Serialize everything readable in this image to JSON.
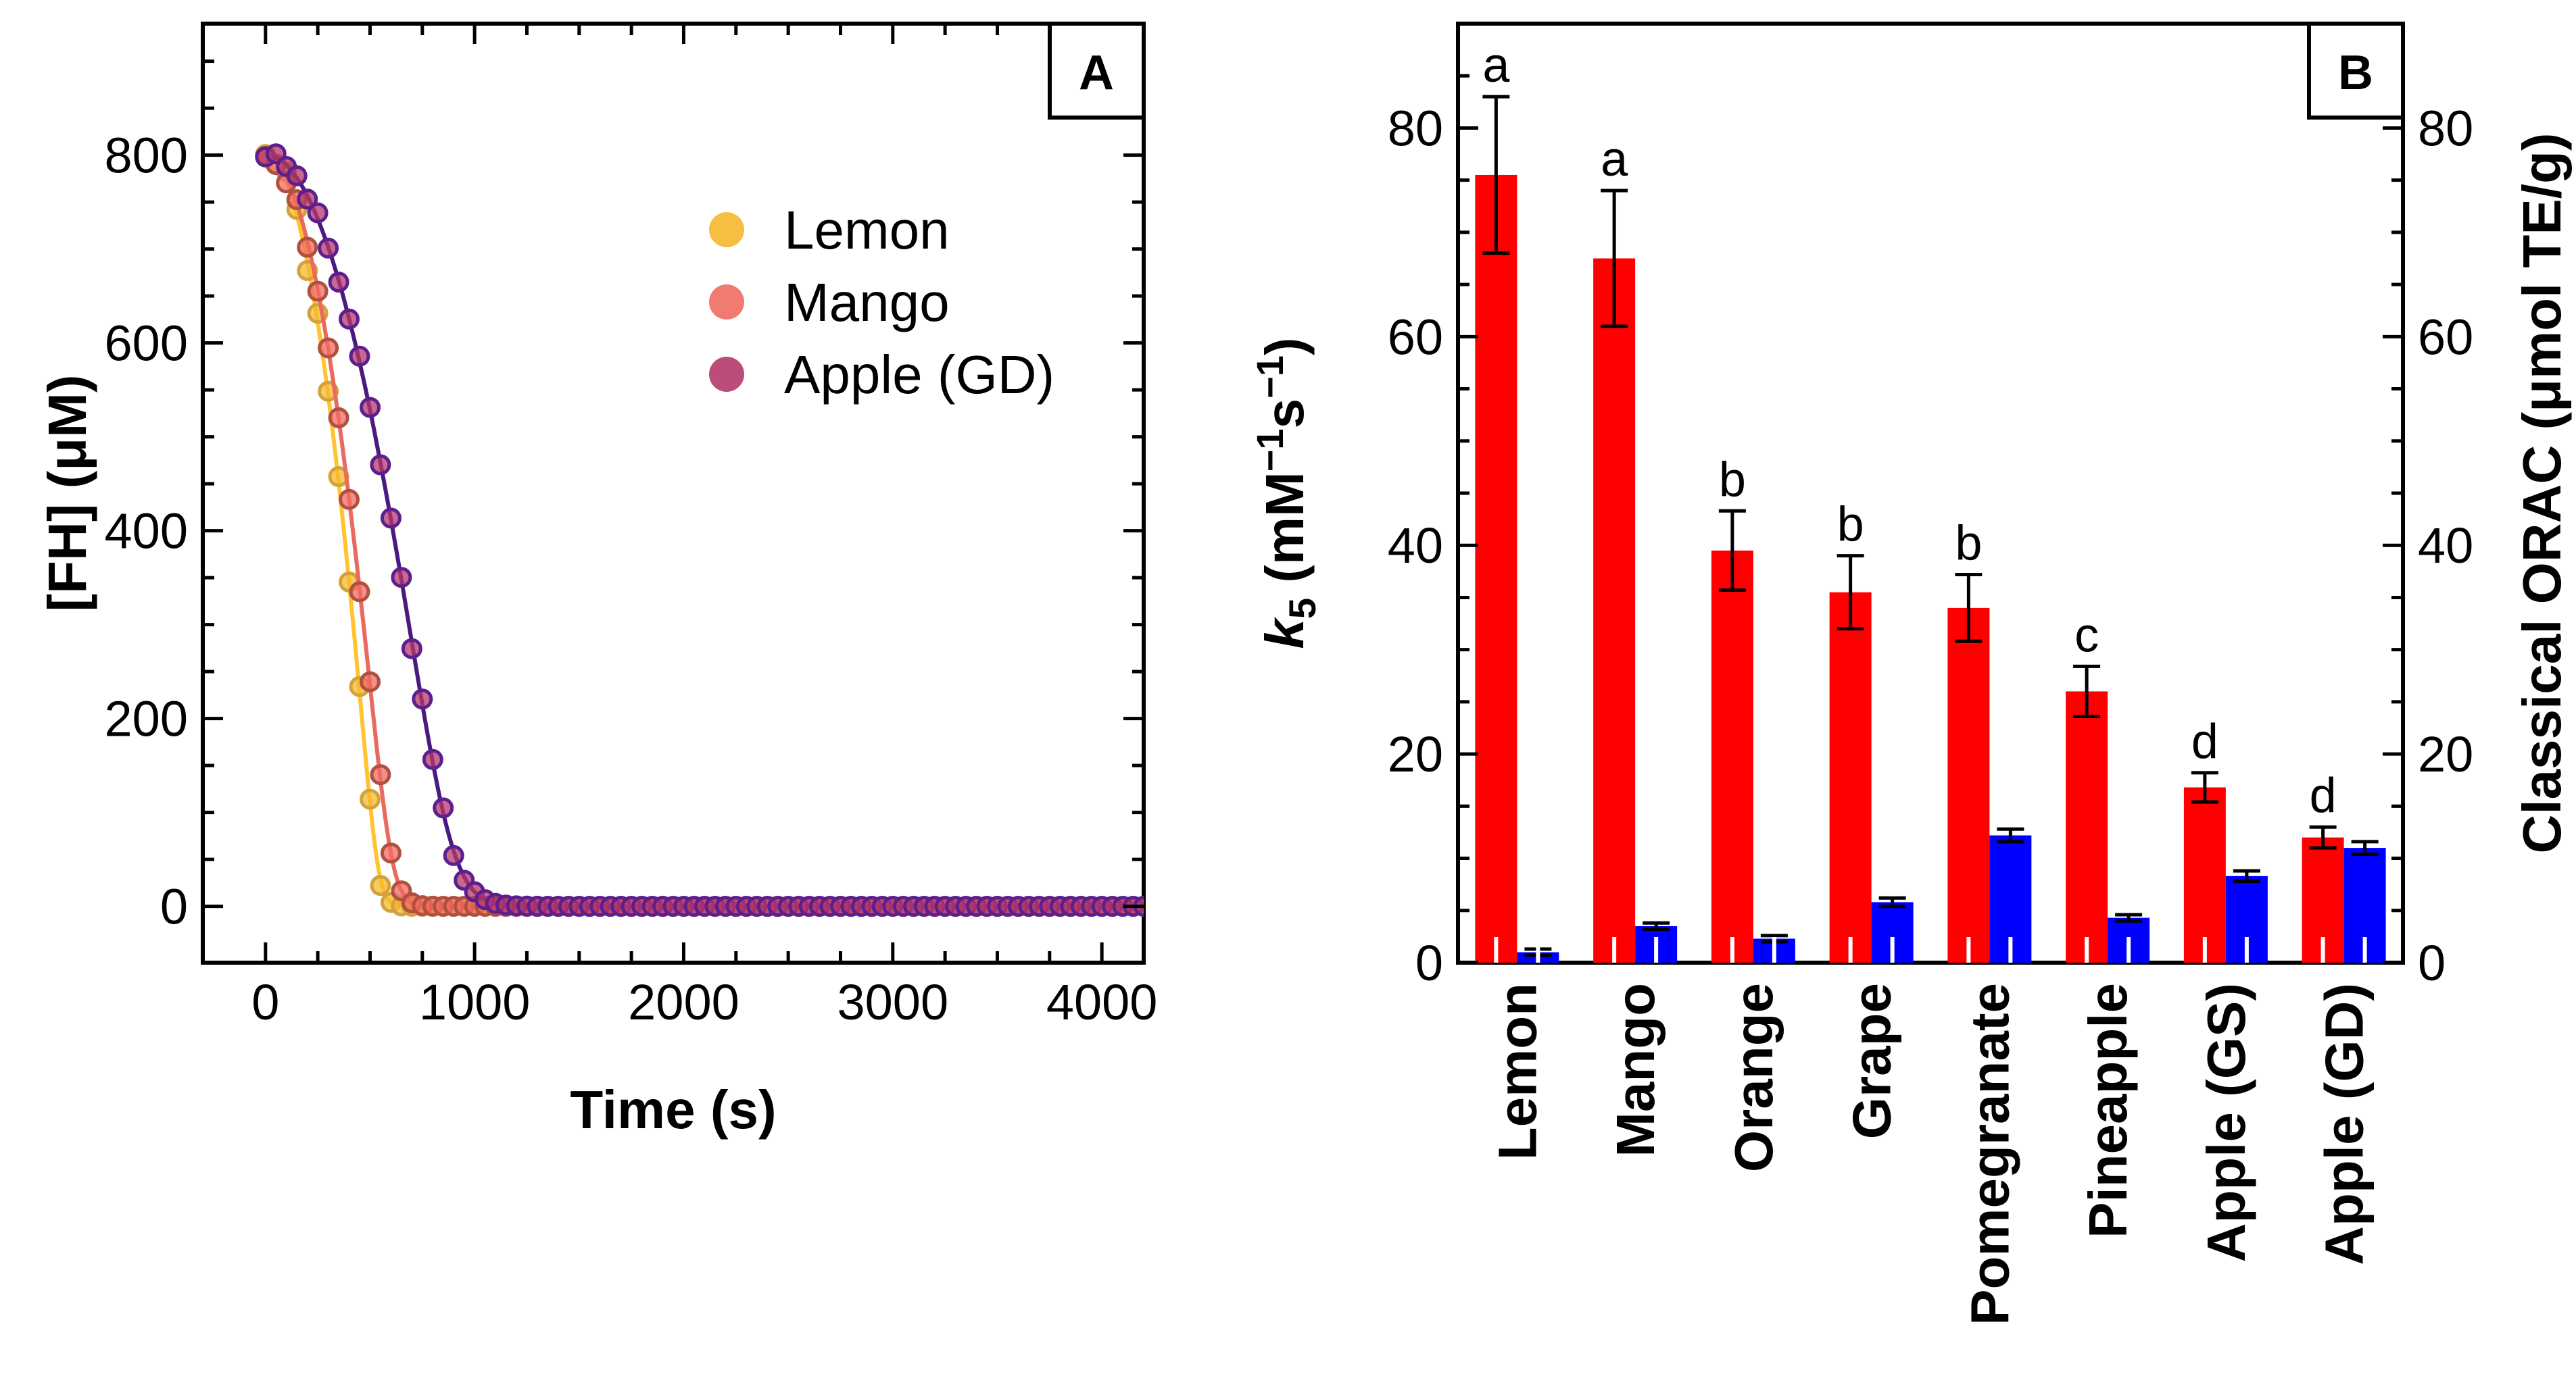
{
  "chart_data": [
    {
      "type": "scatter",
      "panel_label": "A",
      "xlabel": "Time (s)",
      "ylabel": "[FH] (μM)",
      "xlim": [
        -300,
        4200
      ],
      "ylim": [
        -60,
        940
      ],
      "x_ticks": [
        "0",
        "1000",
        "2000",
        "3000",
        "4000"
      ],
      "y_ticks": [
        "0",
        "200",
        "400",
        "600",
        "800"
      ],
      "legend_position": "upper-right",
      "series": [
        {
          "name": "Lemon",
          "fill": "#F5B82E",
          "edge": "#D4A23A",
          "line": "#FFC430",
          "k": 0.0057,
          "t0": 610,
          "tau": 78,
          "noise": 12,
          "seed": 1
        },
        {
          "name": "Mango",
          "fill": "#F06B62",
          "edge": "#B0503F",
          "line": "#E96A5E",
          "k": 0.0046,
          "t0": 1080,
          "tau": 100,
          "noise": 10,
          "seed": 2
        },
        {
          "name": "Apple (GD)",
          "fill": "#B5386A",
          "edge": "#5B1F8F",
          "line": "#4A1A80",
          "k": 0.0022,
          "t0": 2300,
          "tau": 140,
          "noise": 7,
          "seed": 3
        }
      ],
      "x_step": 50,
      "x_start": 0,
      "x_end": 4200
    },
    {
      "type": "bar",
      "panel_label": "B",
      "ylabel_left_symbol": "k",
      "ylabel_left_sub": "5",
      "ylabel_left_units": " (mM",
      "ylabel_left_exp1": "−1",
      "ylabel_left_mid": "s",
      "ylabel_left_exp2": "−1",
      "ylabel_left_close": ")",
      "ylabel_right": "Classical ORAC (μmol TE/g)",
      "ylim": [
        0,
        90
      ],
      "y_ticks": [
        "0",
        "20",
        "40",
        "60",
        "80"
      ],
      "categories": [
        "Lemon",
        "Mango",
        "Orange",
        "Grape",
        "Pomegranate",
        "Pineapple",
        "Apple (GS)",
        "Apple (GD)"
      ],
      "series": [
        {
          "name": "k5",
          "color": "#FF0000",
          "axis": "left",
          "values": [
            75.5,
            67.5,
            39.5,
            35.5,
            34.0,
            26.0,
            16.8,
            12.0
          ],
          "errors": [
            7.5,
            6.5,
            3.8,
            3.5,
            3.2,
            2.4,
            1.4,
            1.0
          ]
        },
        {
          "name": "Classical ORAC",
          "color": "#0000FF",
          "axis": "right",
          "values": [
            1.0,
            3.5,
            2.3,
            5.8,
            12.2,
            4.3,
            8.3,
            11.0
          ],
          "errors": [
            0.3,
            0.3,
            0.3,
            0.4,
            0.6,
            0.3,
            0.5,
            0.6
          ]
        }
      ],
      "group_letters": [
        "a",
        "a",
        "b",
        "b",
        "b",
        "c",
        "d",
        "d"
      ]
    }
  ]
}
